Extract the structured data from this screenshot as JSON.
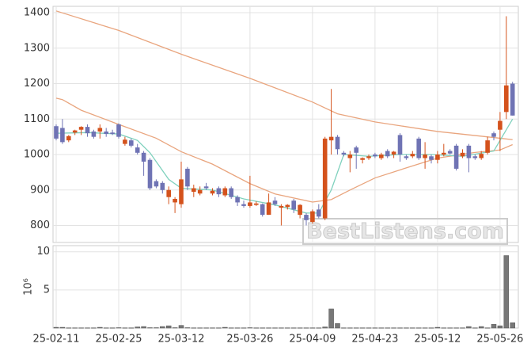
{
  "chart_data": [
    {
      "type": "candlestick",
      "open": [
        1080,
        1075,
        1040,
        1062,
        1070,
        1078,
        1065,
        1065,
        1065,
        1062,
        1085,
        1030,
        1040,
        1020,
        1005,
        985,
        925,
        920,
        880,
        865,
        860,
        960,
        895,
        890,
        910,
        890,
        905,
        885,
        905,
        880,
        860,
        855,
        858,
        860,
        830,
        870,
        850,
        852,
        870,
        830,
        830,
        810,
        845,
        820,
        1040,
        1050,
        1005,
        990,
        1020,
        985,
        990,
        1000,
        990,
        1010,
        1000,
        1055,
        995,
        995,
        1045,
        990,
        995,
        985,
        1000,
        1010,
        1025,
        995,
        1025,
        995,
        990,
        1005,
        1060,
        1070,
        1120,
        1200
      ],
      "high": [
        1085,
        1100,
        1055,
        1070,
        1080,
        1085,
        1070,
        1085,
        1075,
        1070,
        1088,
        1050,
        1045,
        1030,
        1010,
        990,
        930,
        925,
        910,
        880,
        980,
        965,
        915,
        910,
        920,
        905,
        910,
        910,
        910,
        885,
        870,
        940,
        868,
        862,
        890,
        880,
        860,
        860,
        875,
        860,
        835,
        845,
        860,
        1050,
        1185,
        1055,
        1010,
        1010,
        1025,
        992,
        1000,
        1005,
        1005,
        1015,
        1010,
        1060,
        1000,
        1010,
        1050,
        1035,
        1000,
        1010,
        1030,
        1015,
        1030,
        1015,
        1030,
        1000,
        1010,
        1050,
        1065,
        1120,
        1390,
        1205
      ],
      "low": [
        1040,
        1030,
        1035,
        1055,
        1055,
        1050,
        1045,
        1045,
        1050,
        1055,
        1045,
        1025,
        1020,
        1000,
        940,
        900,
        905,
        890,
        860,
        835,
        850,
        900,
        880,
        885,
        900,
        885,
        880,
        880,
        875,
        855,
        850,
        850,
        855,
        825,
        830,
        855,
        800,
        845,
        835,
        820,
        800,
        805,
        820,
        815,
        1000,
        1000,
        995,
        950,
        960,
        975,
        985,
        990,
        985,
        990,
        990,
        980,
        985,
        990,
        985,
        960,
        975,
        975,
        995,
        1000,
        955,
        990,
        950,
        985,
        985,
        1000,
        1040,
        1010,
        1100,
        1110
      ],
      "close": [
        1045,
        1035,
        1052,
        1068,
        1078,
        1060,
        1050,
        1075,
        1058,
        1058,
        1050,
        1042,
        1025,
        1005,
        980,
        905,
        910,
        900,
        900,
        875,
        930,
        910,
        905,
        900,
        905,
        898,
        888,
        905,
        880,
        865,
        855,
        865,
        862,
        830,
        865,
        860,
        855,
        858,
        845,
        858,
        815,
        840,
        825,
        1045,
        1050,
        1015,
        1000,
        1000,
        1005,
        990,
        995,
        995,
        1000,
        995,
        1008,
        1000,
        990,
        1002,
        990,
        1000,
        985,
        1000,
        1005,
        1003,
        960,
        1005,
        990,
        990,
        1002,
        1040,
        1050,
        1095,
        1195,
        1110
      ],
      "up_color": "#d4521c",
      "down_color": "#6f73b4",
      "lines": [
        {
          "color": "#e9a57e",
          "x": [
            0,
            10,
            20,
            31,
            41,
            45,
            51,
            61,
            71,
            73
          ],
          "values": [
            1405,
            1350,
            1283,
            1215,
            1148,
            1115,
            1092,
            1065,
            1046,
            1042
          ]
        },
        {
          "color": "#e9a57e",
          "x": [
            0,
            1,
            4,
            10,
            16,
            20,
            25,
            31,
            35,
            41,
            44,
            47,
            51,
            57,
            61,
            67,
            71,
            73
          ],
          "values": [
            1159,
            1155,
            1125,
            1085,
            1046,
            1008,
            973,
            918,
            889,
            866,
            873,
            900,
            934,
            968,
            990,
            1006,
            1013,
            1028
          ]
        },
        {
          "color": "#7fd1bd",
          "x": [
            0,
            5,
            10,
            13,
            15,
            18,
            20,
            25,
            30,
            35,
            40,
            42,
            44,
            46,
            50,
            55,
            60,
            65,
            70,
            73
          ],
          "values": [
            1060,
            1062,
            1058,
            1040,
            1005,
            930,
            905,
            900,
            875,
            858,
            835,
            835,
            900,
            1000,
            995,
            1000,
            1000,
            995,
            1010,
            1100
          ]
        }
      ],
      "ylim": [
        752,
        1418
      ],
      "yticks": [
        800,
        900,
        1000,
        1100,
        1200,
        1300,
        1400
      ],
      "grid": true,
      "watermark": "BestListens.com"
    },
    {
      "type": "bar",
      "categories": [
        "25-02-11",
        null,
        null,
        null,
        null,
        null,
        null,
        null,
        null,
        null,
        "25-02-25",
        null,
        null,
        null,
        null,
        null,
        null,
        null,
        null,
        null,
        "25-03-12",
        null,
        null,
        null,
        null,
        null,
        null,
        null,
        null,
        null,
        null,
        "25-03-26",
        null,
        null,
        null,
        null,
        null,
        null,
        null,
        null,
        null,
        "25-04-09",
        null,
        null,
        null,
        null,
        null,
        null,
        null,
        null,
        null,
        "25-04-23",
        null,
        null,
        null,
        null,
        null,
        null,
        null,
        null,
        null,
        "25-05-12",
        null,
        null,
        null,
        null,
        null,
        null,
        null,
        null,
        null,
        "25-05-26",
        null,
        null
      ],
      "values": [
        0.1,
        0.1,
        0.03,
        0.03,
        0.03,
        0.03,
        0.03,
        0.1,
        0.03,
        0.03,
        0.05,
        0.03,
        0.03,
        0.15,
        0.2,
        0.05,
        0.05,
        0.2,
        0.3,
        0.05,
        0.35,
        0.05,
        0.03,
        0.03,
        0.03,
        0.03,
        0.03,
        0.1,
        0.03,
        0.03,
        0.03,
        0.05,
        0.03,
        0.03,
        0.03,
        0.03,
        0.03,
        0.03,
        0.03,
        0.03,
        0.03,
        0.03,
        0.03,
        0.15,
        2.5,
        0.6,
        0.03,
        0.03,
        0.03,
        0.03,
        0.03,
        0.03,
        0.03,
        0.03,
        0.03,
        0.03,
        0.03,
        0.03,
        0.03,
        0.03,
        0.03,
        0.1,
        0.03,
        0.03,
        0.03,
        0.03,
        0.2,
        0.03,
        0.2,
        0.03,
        0.5,
        0.3,
        9.5,
        0.7
      ],
      "color": "#777777",
      "ylim": [
        0,
        10.8
      ],
      "yticks": [
        5,
        10
      ],
      "grid": true,
      "y_label": "10⁶"
    }
  ]
}
